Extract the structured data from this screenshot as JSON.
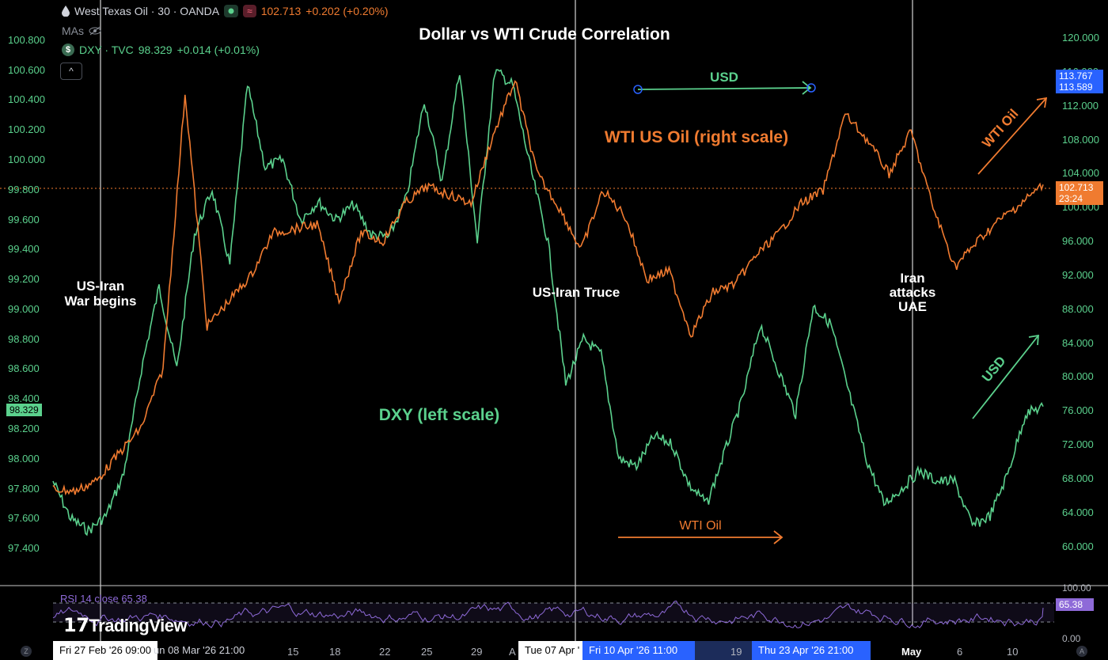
{
  "header": {
    "symbol_title": "West Texas Oil · 30 · OANDA",
    "price": "102.713",
    "change": "+0.202 (+0.20%)",
    "mas_label": "MAs",
    "dxy_title": "DXY · TVC",
    "dxy_price": "98.329",
    "dxy_change": "+0.014 (+0.01%)",
    "collapse_glyph": "^"
  },
  "colors": {
    "oil": "#f07b30",
    "dxy": "#5bd18d",
    "rsi": "#8e6ad8",
    "accent_blue": "#2962ff"
  },
  "chart_data": {
    "type": "line",
    "title": "Dollar vs WTI Crude Correlation",
    "series": [
      {
        "name": "DXY (left scale)",
        "axis": "left",
        "values": [
          97.85,
          97.6,
          97.52,
          97.62,
          97.9,
          98.6,
          99.15,
          98.6,
          99.5,
          99.8,
          99.3,
          100.5,
          99.95,
          100.0,
          99.6,
          99.72,
          99.6,
          99.7,
          99.5,
          99.48,
          99.75,
          100.4,
          99.85,
          100.6,
          99.45,
          100.6,
          100.5,
          99.95,
          99.45,
          98.5,
          98.8,
          98.7,
          98.0,
          97.95,
          98.15,
          98.1,
          97.82,
          97.7,
          98.05,
          98.4,
          98.9,
          98.6,
          98.3,
          99.02,
          98.9,
          98.45,
          98.0,
          97.7,
          97.8,
          97.92,
          97.85,
          97.85,
          97.55,
          97.62,
          97.9,
          98.3,
          98.35
        ]
      },
      {
        "name": "WTI US Oil (right scale)",
        "axis": "right",
        "values": [
          66.8,
          66.5,
          67.8,
          71.0,
          74.0,
          81.0,
          113.5,
          86.0,
          89.0,
          92.0,
          97.0,
          97.5,
          98.0,
          89.0,
          97.0,
          96.0,
          100.5,
          102.5,
          101.5,
          100.5,
          108.5,
          115.0,
          104.0,
          100.0,
          95.0,
          102.0,
          99.0,
          91.5,
          92.5,
          85.0,
          90.0,
          91.0,
          94.5,
          97.0,
          100.5,
          102.0,
          111.0,
          108.0,
          104.0,
          109.0,
          100.0,
          93.0,
          96.0,
          98.5,
          100.5,
          102.7
        ]
      }
    ],
    "left_axis": {
      "ticks": [
        "100.800",
        "100.600",
        "100.400",
        "100.200",
        "100.000",
        "99.800",
        "99.600",
        "99.400",
        "99.200",
        "99.000",
        "98.800",
        "98.600",
        "98.400",
        "98.200",
        "98.000",
        "97.800",
        "97.600",
        "97.400"
      ],
      "range": [
        97.3,
        100.9
      ]
    },
    "right_axis": {
      "ticks": [
        "120.000",
        "116.000",
        "112.000",
        "108.000",
        "104.000",
        "100.000",
        "96.000",
        "92.000",
        "88.000",
        "84.000",
        "80.000",
        "76.000",
        "72.000",
        "68.000",
        "64.000",
        "60.000"
      ],
      "range": [
        58.0,
        121.5
      ]
    },
    "x_axis": {
      "labels": [
        "15",
        "18",
        "22",
        "25",
        "29",
        "A",
        "19",
        "May",
        "6",
        "10"
      ],
      "highlights": [
        "Fri 27 Feb '26   09:00",
        "un 08 Mar '26   21:00",
        "Tue 07 Apr '",
        "Fri 10 Apr '26   11:00",
        "Thu 23 Apr '26   21:00"
      ]
    },
    "price_tags": {
      "dxy_last": "98.329",
      "oil_last": "102.713",
      "oil_timer": "23:24",
      "blue_high": "113.767",
      "blue_low": "113.589"
    },
    "annotations": {
      "war": "US-Iran\nWar begins",
      "truce": "US-Iran Truce",
      "uae": "Iran\nattacks\nUAE",
      "oil_label": "WTI US Oil (right scale)",
      "dxy_label": "DXY (left scale)",
      "usd_top": "USD",
      "wti_oil_bottom": "WTI Oil",
      "wti_oil_arrow": "WTI Oil",
      "usd_arrow": "USD"
    },
    "rsi": {
      "label": "RSI 14 close",
      "value": "65.38",
      "ticks": [
        "100.00",
        "0.00"
      ],
      "upper": 70,
      "lower": 30
    }
  },
  "branding": {
    "logo_text": "TradingView",
    "corner_left": "Z",
    "corner_right": "A"
  }
}
